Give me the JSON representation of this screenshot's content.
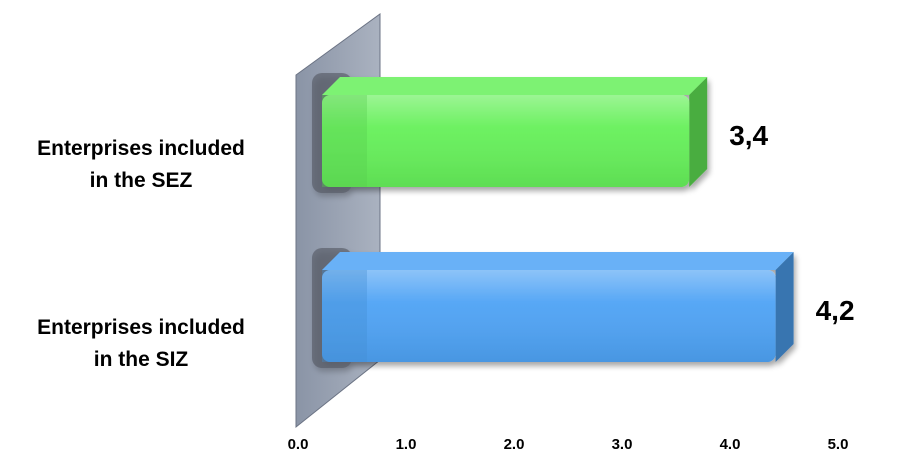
{
  "chart_data": {
    "type": "bar",
    "orientation": "horizontal",
    "style": "3d",
    "categories": [
      "Enterprises included in the SEZ",
      "Enterprises included in the SIZ"
    ],
    "category_lines": [
      [
        "Enterprises included",
        "in the SEZ"
      ],
      [
        "Enterprises included",
        "in the SIZ"
      ]
    ],
    "values": [
      3.4,
      4.2
    ],
    "value_labels": [
      "3,4",
      "4,2"
    ],
    "colors": [
      "#66f05a",
      "#4fa3f5"
    ],
    "xlim": [
      0,
      5
    ],
    "xticks": [
      0,
      1,
      2,
      3,
      4,
      5
    ],
    "xtick_labels": [
      "0.0",
      "1.0",
      "2.0",
      "3.0",
      "4.0",
      "5.0"
    ],
    "grid": false,
    "legend": "none",
    "title": "",
    "xlabel": "",
    "ylabel": ""
  }
}
